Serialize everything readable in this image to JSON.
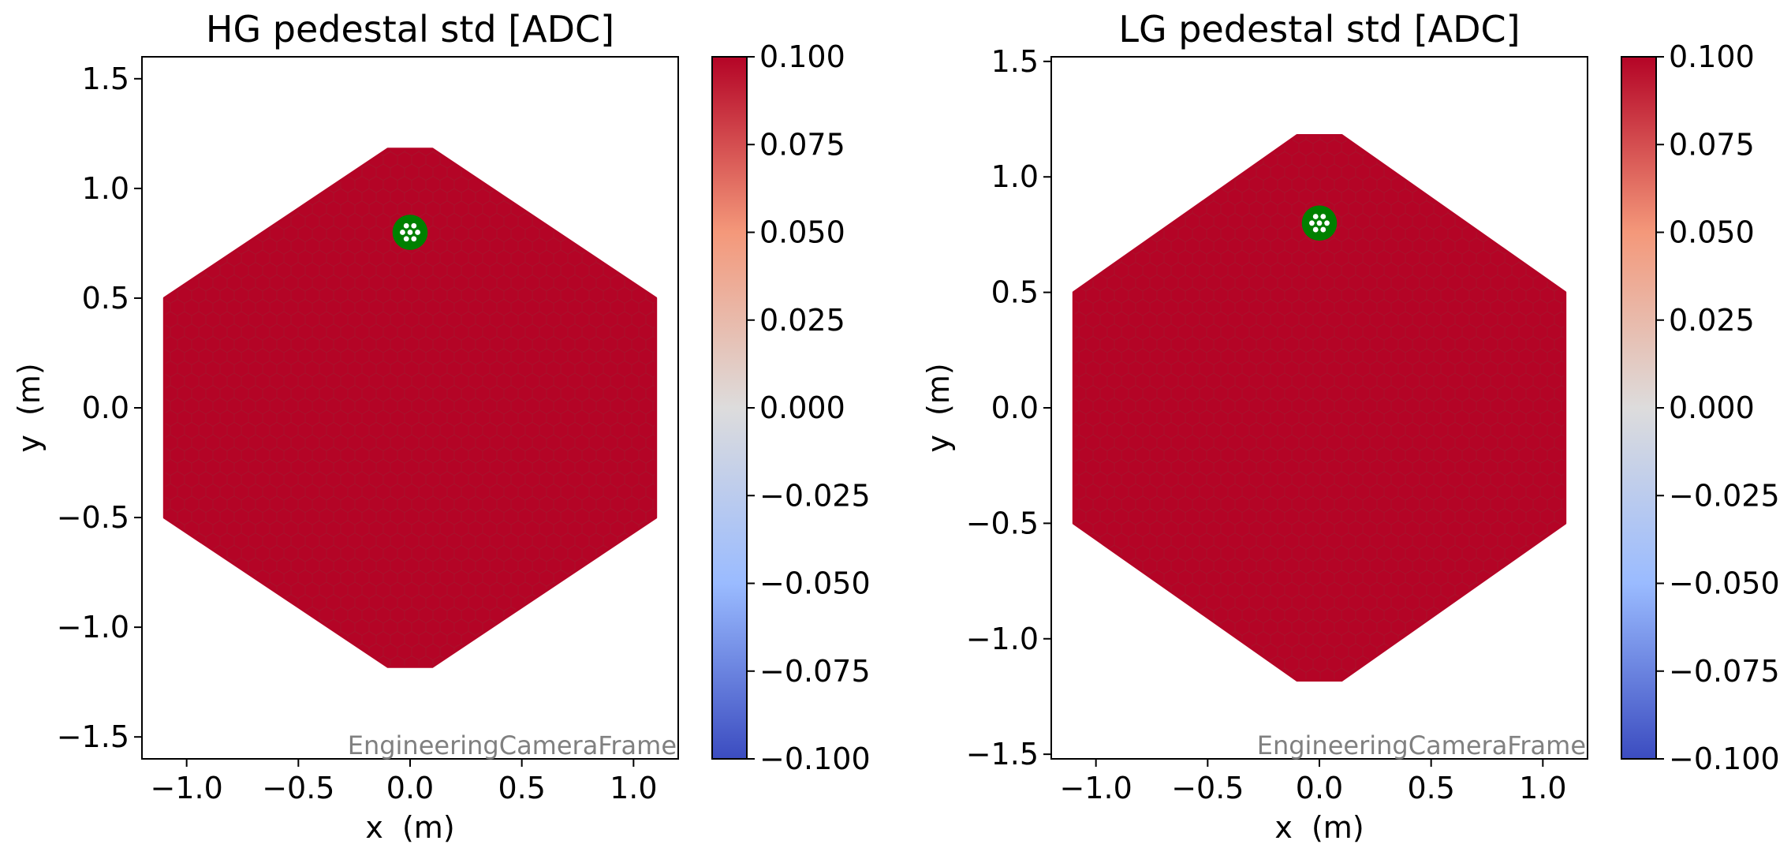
{
  "chart_data": [
    {
      "type": "heatmap",
      "title": "HG pedestal std [ADC]",
      "xlabel": "x  (m)",
      "ylabel": "y  (m)",
      "xlim": [
        -1.2,
        1.2
      ],
      "ylim": [
        -1.6,
        1.6
      ],
      "xticks": [
        -1.0,
        -0.5,
        0.0,
        0.5,
        1.0
      ],
      "xtick_labels": [
        "−1.0",
        "−0.5",
        "0.0",
        "0.5",
        "1.0"
      ],
      "yticks": [
        -1.5,
        -1.0,
        -0.5,
        0.0,
        0.5,
        1.0,
        1.5
      ],
      "ytick_labels": [
        "−1.5",
        "−1.0",
        "−0.5",
        "0.0",
        "0.5",
        "1.0",
        "1.5"
      ],
      "frame_label": "EngineeringCameraFrame",
      "camera": {
        "shape": "hexagonal",
        "outer_vertices": [
          [
            0.1,
            1.18
          ],
          [
            -0.1,
            1.18
          ],
          [
            -1.1,
            0.5
          ],
          [
            -1.1,
            -0.5
          ],
          [
            -0.1,
            -1.18
          ],
          [
            0.1,
            -1.18
          ],
          [
            1.1,
            -0.5
          ],
          [
            1.1,
            0.5
          ]
        ],
        "pixel_value": 0.1,
        "pixel_color": "#b40426",
        "highlight": {
          "center": [
            0.0,
            0.8
          ],
          "radius": 0.075,
          "color": "#008000",
          "dot_color": "#ffffff"
        }
      },
      "colorbar": {
        "vmin": -0.1,
        "vmax": 0.1,
        "ticks": [
          0.1,
          0.075,
          0.05,
          0.025,
          0.0,
          -0.025,
          -0.05,
          -0.075,
          -0.1
        ],
        "tick_labels": [
          "0.100",
          "0.075",
          "0.050",
          "0.025",
          "0.000",
          "−0.025",
          "−0.050",
          "−0.075",
          "−0.100"
        ],
        "colormap": "coolwarm",
        "stops": [
          "#b40426",
          "#f4987a",
          "#dddcdc",
          "#9abbff",
          "#3b4cc0"
        ]
      }
    },
    {
      "type": "heatmap",
      "title": "LG pedestal std [ADC]",
      "xlabel": "x  (m)",
      "ylabel": "y  (m)",
      "xlim": [
        -1.2,
        1.2
      ],
      "ylim": [
        -1.52,
        1.52
      ],
      "xticks": [
        -1.0,
        -0.5,
        0.0,
        0.5,
        1.0
      ],
      "xtick_labels": [
        "−1.0",
        "−0.5",
        "0.0",
        "0.5",
        "1.0"
      ],
      "yticks": [
        -1.5,
        -1.0,
        -0.5,
        0.0,
        0.5,
        1.0,
        1.5
      ],
      "ytick_labels": [
        "−1.5",
        "−1.0",
        "−0.5",
        "0.0",
        "0.5",
        "1.0",
        "1.5"
      ],
      "frame_label": "EngineeringCameraFrame",
      "camera": {
        "shape": "hexagonal",
        "outer_vertices": [
          [
            0.1,
            1.18
          ],
          [
            -0.1,
            1.18
          ],
          [
            -1.1,
            0.5
          ],
          [
            -1.1,
            -0.5
          ],
          [
            -0.1,
            -1.18
          ],
          [
            0.1,
            -1.18
          ],
          [
            1.1,
            -0.5
          ],
          [
            1.1,
            0.5
          ]
        ],
        "pixel_value": 0.1,
        "pixel_color": "#b40426",
        "highlight": {
          "center": [
            0.0,
            0.8
          ],
          "radius": 0.075,
          "color": "#008000",
          "dot_color": "#ffffff"
        }
      },
      "colorbar": {
        "vmin": -0.1,
        "vmax": 0.1,
        "ticks": [
          0.1,
          0.075,
          0.05,
          0.025,
          0.0,
          -0.025,
          -0.05,
          -0.075,
          -0.1
        ],
        "tick_labels": [
          "0.100",
          "0.075",
          "0.050",
          "0.025",
          "0.000",
          "−0.025",
          "−0.050",
          "−0.075",
          "−0.100"
        ],
        "colormap": "coolwarm",
        "stops": [
          "#b40426",
          "#f4987a",
          "#dddcdc",
          "#9abbff",
          "#3b4cc0"
        ]
      }
    }
  ]
}
